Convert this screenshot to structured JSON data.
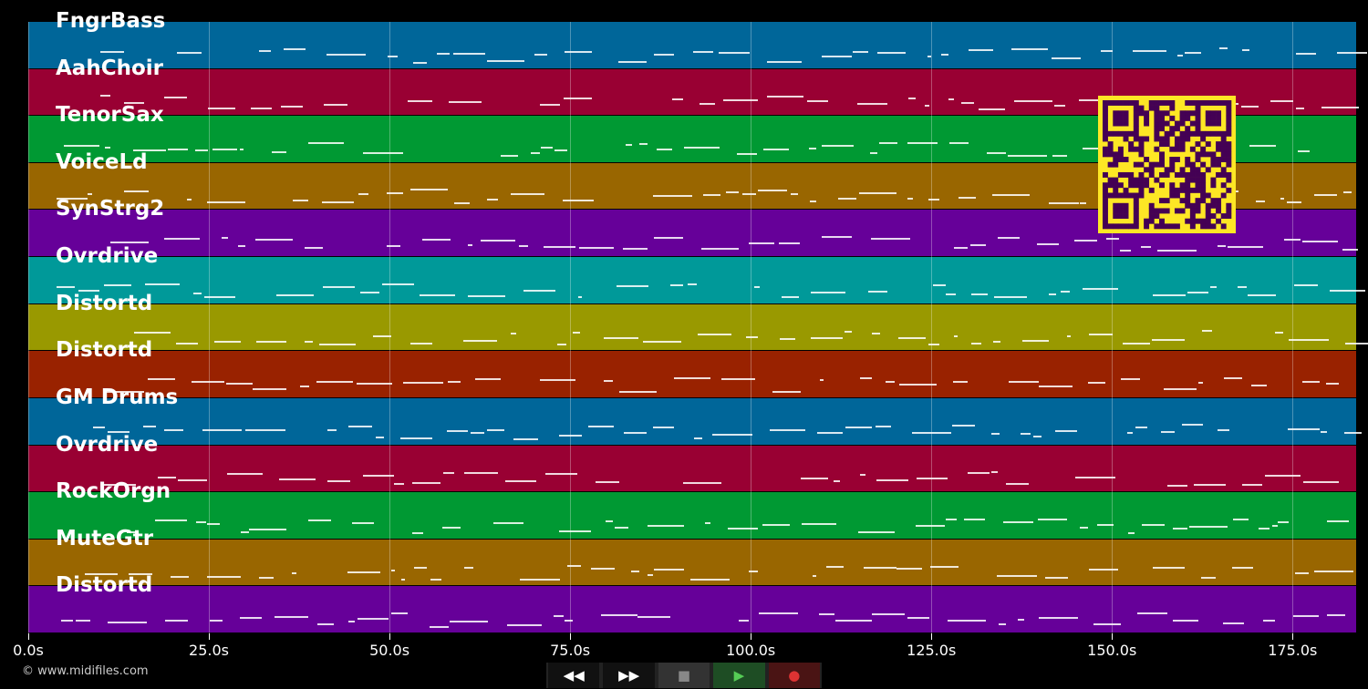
{
  "tracks": [
    {
      "name": "FngrBass",
      "color": "#006699"
    },
    {
      "name": "AahChoir",
      "color": "#990033"
    },
    {
      "name": "TenorSax",
      "color": "#009933"
    },
    {
      "name": "VoiceLd",
      "color": "#996600"
    },
    {
      "name": "SynStrg2",
      "color": "#660099"
    },
    {
      "name": "Ovrdrive",
      "color": "#009999"
    },
    {
      "name": "Distortd",
      "color": "#999900"
    },
    {
      "name": "Distortd",
      "color": "#992200"
    },
    {
      "name": "GM Drums",
      "color": "#006699"
    },
    {
      "name": "Ovrdrive",
      "color": "#990033"
    },
    {
      "name": "RockOrgn",
      "color": "#009933"
    },
    {
      "name": "MuteGtr",
      "color": "#996600"
    },
    {
      "name": "Distortd",
      "color": "#660099"
    }
  ],
  "axis": {
    "max_seconds": 183.8,
    "ticks": [
      "0.0s",
      "25.0s",
      "50.0s",
      "75.0s",
      "100.0s",
      "125.0s",
      "150.0s",
      "175.0s"
    ]
  },
  "controls": {
    "rewind": "◀◀",
    "forward": "▶▶",
    "stop": "■",
    "play": "▶",
    "record": "●"
  },
  "credit": "© www.midifiles.com"
}
